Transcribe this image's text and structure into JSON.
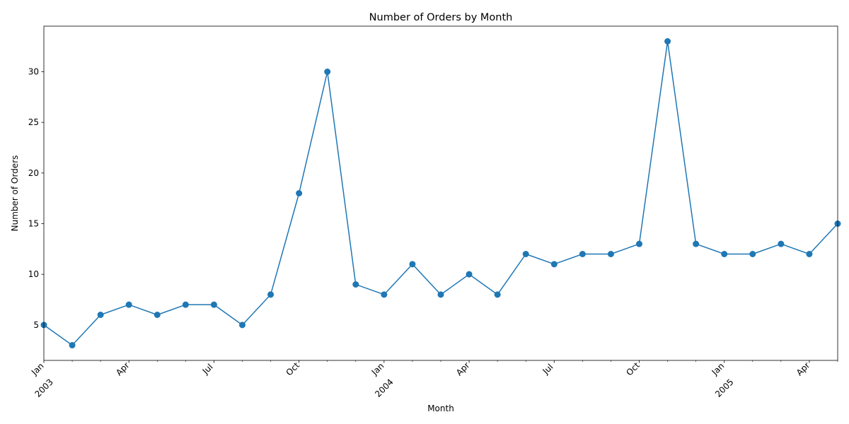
{
  "chart_data": {
    "type": "line",
    "title": "Number of Orders by Month",
    "xlabel": "Month",
    "ylabel": "Number of Orders",
    "ylim": [
      1.5,
      34.5
    ],
    "yticks": [
      5,
      10,
      15,
      20,
      25,
      30
    ],
    "color": "#1f77b4",
    "grid": false,
    "x": [
      "2003-01",
      "2003-02",
      "2003-03",
      "2003-04",
      "2003-05",
      "2003-06",
      "2003-07",
      "2003-08",
      "2003-09",
      "2003-10",
      "2003-11",
      "2003-12",
      "2004-01",
      "2004-02",
      "2004-03",
      "2004-04",
      "2004-05",
      "2004-06",
      "2004-07",
      "2004-08",
      "2004-09",
      "2004-10",
      "2004-11",
      "2004-12",
      "2005-01",
      "2005-02",
      "2005-03",
      "2005-04",
      "2005-05"
    ],
    "series": [
      {
        "name": "Number of Orders",
        "values": [
          5,
          3,
          6,
          7,
          6,
          7,
          7,
          5,
          8,
          18,
          30,
          9,
          8,
          11,
          8,
          10,
          8,
          12,
          11,
          12,
          12,
          13,
          33,
          13,
          12,
          12,
          13,
          12,
          15
        ]
      }
    ],
    "xticks": [
      {
        "index": 0,
        "label": "Jan",
        "year": "2003"
      },
      {
        "index": 3,
        "label": "Apr",
        "year": ""
      },
      {
        "index": 6,
        "label": "Jul",
        "year": ""
      },
      {
        "index": 9,
        "label": "Oct",
        "year": ""
      },
      {
        "index": 12,
        "label": "Jan",
        "year": "2004"
      },
      {
        "index": 15,
        "label": "Apr",
        "year": ""
      },
      {
        "index": 18,
        "label": "Jul",
        "year": ""
      },
      {
        "index": 21,
        "label": "Oct",
        "year": ""
      },
      {
        "index": 24,
        "label": "Jan",
        "year": "2005"
      },
      {
        "index": 27,
        "label": "Apr",
        "year": ""
      }
    ]
  }
}
